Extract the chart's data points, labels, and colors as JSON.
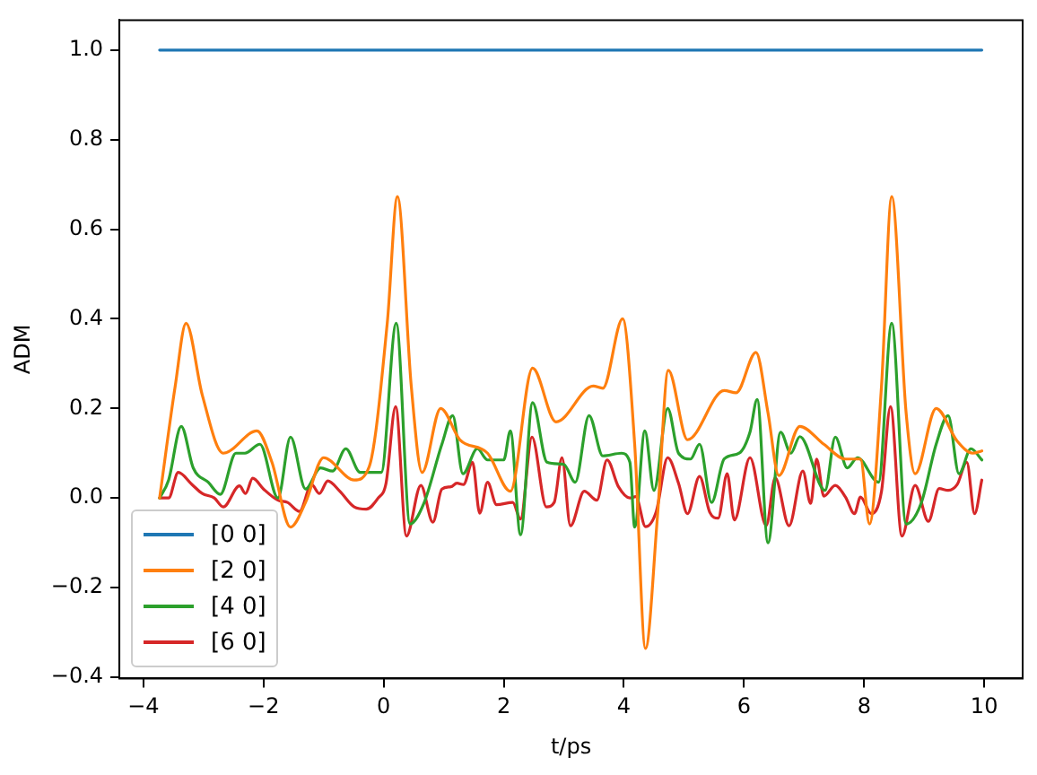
{
  "chart_data": {
    "type": "line",
    "xlabel": "t/ps",
    "ylabel": "ADM",
    "xlim": [
      -4.4,
      10.64
    ],
    "ylim": [
      -0.403,
      1.067
    ],
    "xticks": [
      {
        "value": -4,
        "label": "−4"
      },
      {
        "value": -2,
        "label": "−2"
      },
      0,
      2,
      4,
      6,
      8,
      10
    ],
    "yticks": [
      {
        "value": -0.4,
        "label": "−0.4"
      },
      {
        "value": -0.2,
        "label": "−0.2"
      },
      {
        "value": 0,
        "label": "0.0"
      },
      {
        "value": 0.2,
        "label": "0.2"
      },
      {
        "value": 0.4,
        "label": "0.4"
      },
      {
        "value": 0.6,
        "label": "0.6"
      },
      {
        "value": 0.8,
        "label": "0.8"
      },
      {
        "value": 1.0,
        "label": "1.0"
      }
    ],
    "grid": false,
    "legend": "bottom left",
    "series": [
      {
        "name": "[0 0]",
        "color": "#1f77b4",
        "x": [
          -3.73,
          9.96
        ],
        "values": [
          1.0,
          1.0
        ]
      },
      {
        "name": "[2 0]",
        "color": "#ff7f0e",
        "x": [
          -3.73,
          -3.47,
          -3.29,
          -3.02,
          -2.67,
          -2.11,
          -1.86,
          -1.55,
          -1.3,
          -1.0,
          -0.49,
          -0.24,
          0.06,
          0.23,
          0.46,
          0.64,
          0.95,
          1.27,
          1.73,
          2.11,
          2.48,
          2.87,
          3.49,
          3.65,
          3.98,
          4.18,
          4.36,
          4.56,
          4.74,
          5.06,
          5.67,
          5.87,
          6.2,
          6.4,
          6.58,
          6.93,
          7.33,
          7.69,
          7.94,
          8.09,
          8.29,
          8.46,
          8.7,
          8.85,
          9.2,
          9.55,
          9.81,
          9.96
        ],
        "values": [
          0,
          0.25,
          0.39,
          0.23,
          0.1,
          0.15,
          0.08,
          -0.065,
          -0.01,
          0.09,
          0.04,
          0.07,
          0.39,
          0.673,
          0.25,
          0.057,
          0.2,
          0.13,
          0.1,
          0.015,
          0.29,
          0.17,
          0.25,
          0.245,
          0.4,
          0.12,
          -0.336,
          -0.04,
          0.285,
          0.13,
          0.24,
          0.235,
          0.325,
          0.19,
          0.05,
          0.16,
          0.12,
          0.087,
          0.087,
          -0.058,
          0.25,
          0.673,
          0.19,
          0.054,
          0.2,
          0.127,
          0.1,
          0.105
        ]
      },
      {
        "name": "[4 0]",
        "color": "#2ca02c",
        "x": [
          -3.73,
          -3.58,
          -3.37,
          -3.17,
          -2.92,
          -2.72,
          -2.46,
          -2.31,
          -2.06,
          -1.76,
          -1.55,
          -1.3,
          -1.05,
          -0.85,
          -0.63,
          -0.39,
          -0.04,
          0.21,
          0.44,
          0.67,
          0.97,
          1.15,
          1.32,
          1.56,
          1.73,
          2.0,
          2.11,
          2.28,
          2.48,
          2.72,
          3.0,
          3.19,
          3.42,
          3.65,
          3.96,
          4.1,
          4.18,
          4.35,
          4.5,
          4.73,
          4.91,
          5.11,
          5.26,
          5.46,
          5.67,
          5.92,
          6.1,
          6.22,
          6.4,
          6.61,
          6.78,
          6.93,
          7.35,
          7.52,
          7.72,
          7.89,
          8.24,
          8.46,
          8.7,
          8.95,
          9.2,
          9.4,
          9.58,
          9.78,
          9.96
        ],
        "values": [
          0,
          0.04,
          0.16,
          0.067,
          0.035,
          0.008,
          0.1,
          0.1,
          0.12,
          0.0,
          0.136,
          0.02,
          0.067,
          0.06,
          0.11,
          0.057,
          0.057,
          0.39,
          -0.058,
          -0.012,
          0.12,
          0.184,
          0.054,
          0.11,
          0.085,
          0.085,
          0.15,
          -0.082,
          0.213,
          0.08,
          0.075,
          0.035,
          0.184,
          0.094,
          0.1,
          0.08,
          -0.065,
          0.15,
          0.017,
          0.2,
          0.1,
          0.087,
          0.12,
          -0.01,
          0.087,
          0.1,
          0.147,
          0.22,
          -0.1,
          0.147,
          0.1,
          0.137,
          0.017,
          0.136,
          0.067,
          0.09,
          0.035,
          0.39,
          -0.058,
          -0.012,
          0.12,
          0.184,
          0.054,
          0.11,
          0.085
        ]
      },
      {
        "name": "[6 0]",
        "color": "#d62728",
        "x": [
          -3.73,
          -3.58,
          -3.42,
          -3.19,
          -3.02,
          -2.82,
          -2.67,
          -2.4,
          -2.3,
          -2.18,
          -2.0,
          -1.76,
          -1.6,
          -1.4,
          -1.2,
          -1.07,
          -0.93,
          -0.73,
          -0.49,
          -0.29,
          -0.09,
          0.04,
          0.2,
          0.38,
          0.62,
          0.82,
          0.97,
          1.12,
          1.22,
          1.33,
          1.48,
          1.6,
          1.73,
          1.88,
          2.15,
          2.28,
          2.47,
          2.71,
          2.84,
          2.97,
          3.11,
          3.34,
          3.55,
          3.72,
          3.91,
          4.1,
          4.2,
          4.36,
          4.54,
          4.73,
          4.91,
          5.06,
          5.26,
          5.43,
          5.57,
          5.72,
          5.84,
          6.1,
          6.37,
          6.52,
          6.75,
          6.98,
          7.11,
          7.21,
          7.33,
          7.52,
          7.69,
          7.84,
          7.94,
          8.12,
          8.29,
          8.44,
          8.63,
          8.85,
          9.07,
          9.25,
          9.4,
          9.55,
          9.71,
          9.84,
          9.96
        ],
        "values": [
          0,
          0,
          0.057,
          0.03,
          0.01,
          0,
          -0.02,
          0.027,
          0.01,
          0.044,
          0.02,
          -0.005,
          -0.01,
          -0.03,
          0.03,
          0.01,
          0.038,
          0.015,
          -0.02,
          -0.025,
          0,
          0.033,
          0.204,
          -0.085,
          0.028,
          -0.054,
          0.02,
          0.025,
          0.033,
          0.03,
          0.08,
          -0.034,
          0.035,
          -0.015,
          -0.01,
          -0.047,
          0.136,
          -0.02,
          -0.01,
          0.09,
          -0.062,
          0.015,
          -0.005,
          0.085,
          0.025,
          0,
          0.003,
          -0.064,
          -0.03,
          0.09,
          0.033,
          -0.035,
          0.048,
          -0.032,
          -0.045,
          0.054,
          -0.049,
          0.09,
          -0.062,
          0.045,
          -0.062,
          0.06,
          -0.012,
          0.087,
          0.004,
          0.028,
          0.002,
          -0.035,
          0.002,
          -0.035,
          0.015,
          0.204,
          -0.085,
          0.028,
          -0.052,
          0.021,
          0.017,
          0.03,
          0.08,
          -0.035,
          0.04
        ]
      }
    ]
  }
}
